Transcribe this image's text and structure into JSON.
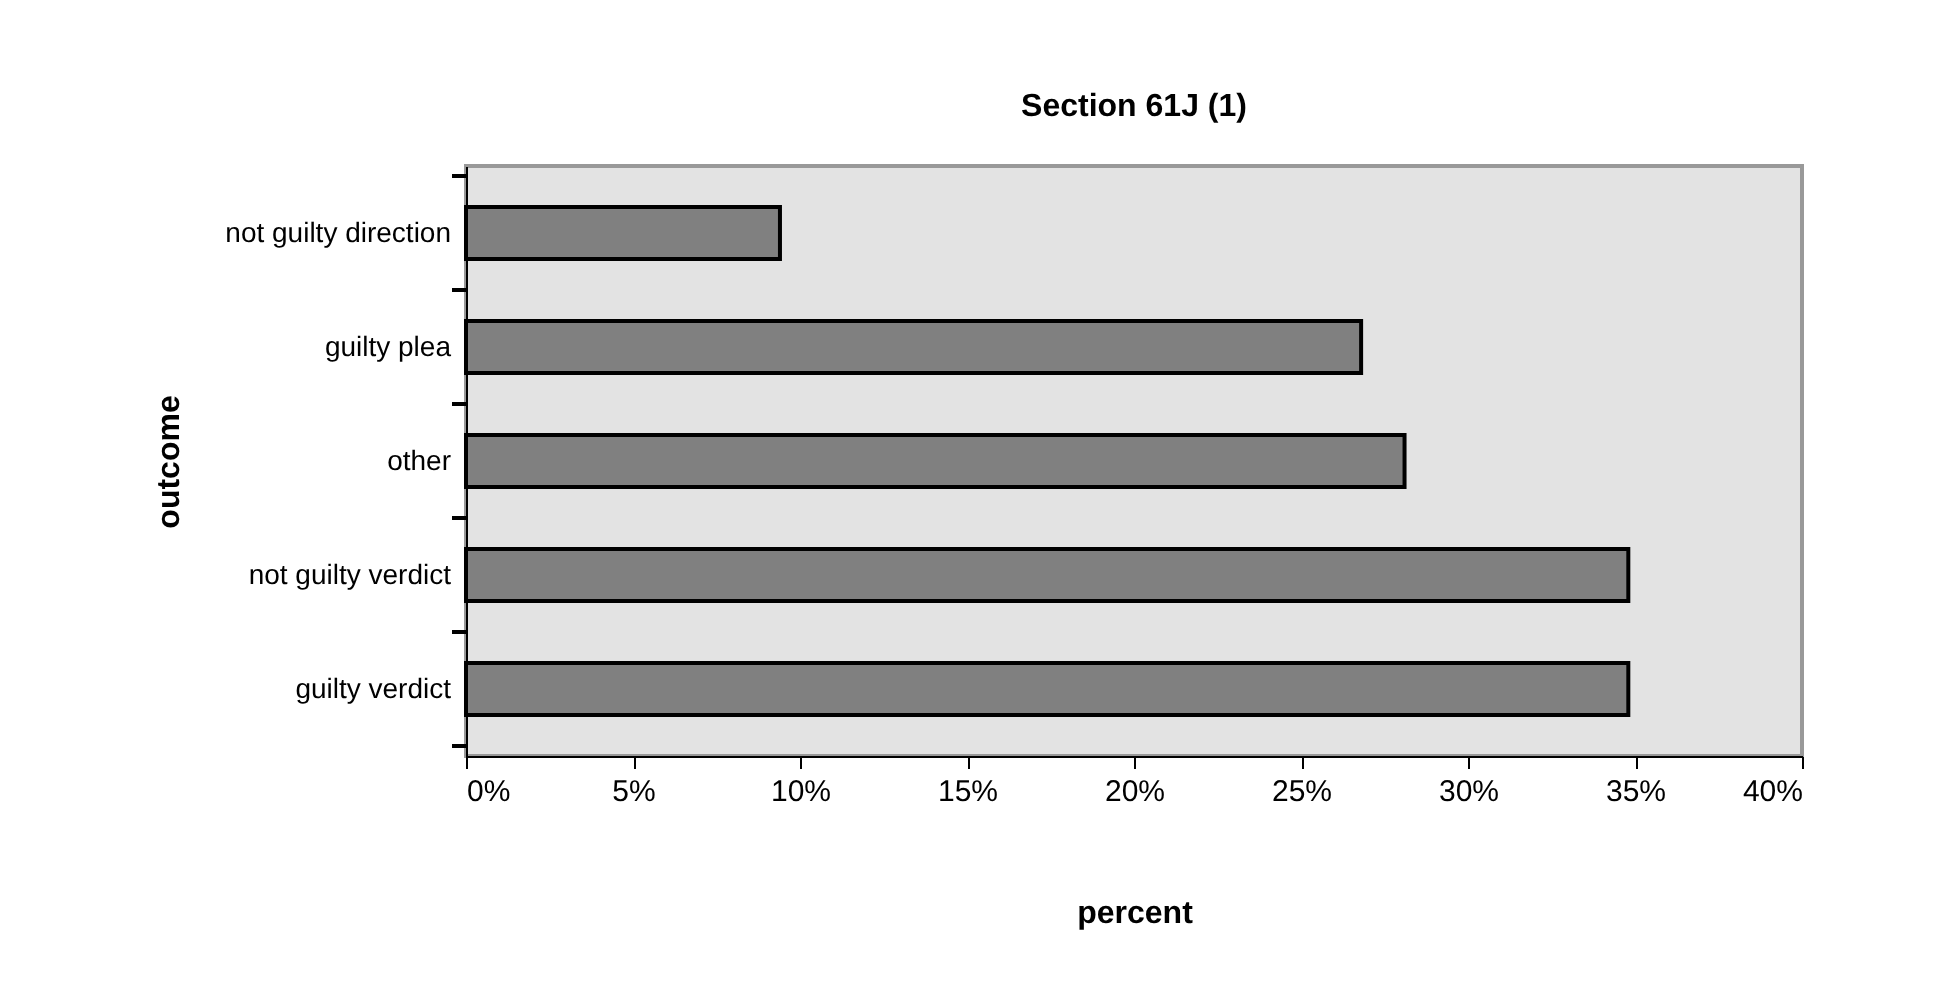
{
  "chart_data": {
    "type": "bar",
    "orientation": "horizontal",
    "title": "Section 61J (1)",
    "xlabel": "percent",
    "ylabel": "outcome",
    "categories": [
      "not guilty direction",
      "guilty plea",
      "other",
      "not guilty verdict",
      "guilty verdict"
    ],
    "values": [
      9.4,
      26.8,
      28.1,
      34.8,
      34.8
    ],
    "color": "#808080",
    "xlim": [
      0,
      40
    ],
    "xticks": [
      {
        "value": 0,
        "label": "0%"
      },
      {
        "value": 5,
        "label": "5%"
      },
      {
        "value": 10,
        "label": "10%"
      },
      {
        "value": 15,
        "label": "15%"
      },
      {
        "value": 20,
        "label": "20%"
      },
      {
        "value": 25,
        "label": "25%"
      },
      {
        "value": 30,
        "label": "30%"
      },
      {
        "value": 35,
        "label": "35%"
      },
      {
        "value": 40,
        "label": "40%"
      }
    ],
    "grid": false
  }
}
